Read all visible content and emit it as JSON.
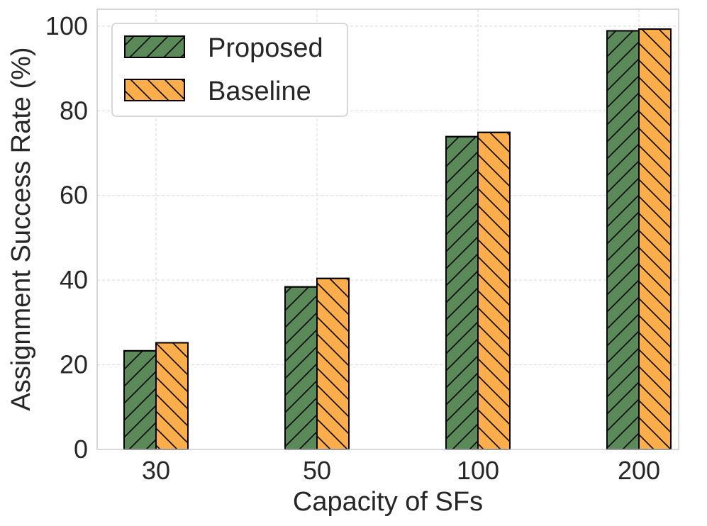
{
  "chart_data": {
    "type": "bar",
    "title": "",
    "xlabel": "Capacity of SFs",
    "ylabel": "Assignment Success Rate (%)",
    "categories": [
      "30",
      "50",
      "100",
      "200"
    ],
    "ylim": [
      0,
      104
    ],
    "yticks": [
      0,
      20,
      40,
      60,
      80,
      100
    ],
    "grid": true,
    "legend_position": "top-left",
    "series": [
      {
        "name": "Proposed",
        "values": [
          23.3,
          38.4,
          73.9,
          98.9
        ],
        "color": "#5a8a57",
        "hatch": "forward"
      },
      {
        "name": "Baseline",
        "values": [
          25.2,
          40.4,
          74.9,
          99.3
        ],
        "color": "#fdae4b",
        "hatch": "backward"
      }
    ]
  }
}
